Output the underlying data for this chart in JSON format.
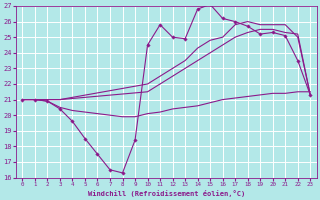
{
  "background_color": "#b3e8e8",
  "grid_color": "#ffffff",
  "line_color": "#8b1a8b",
  "xlabel": "Windchill (Refroidissement éolien,°C)",
  "xlim": [
    -0.5,
    23.5
  ],
  "ylim": [
    16,
    27
  ],
  "xticks": [
    0,
    1,
    2,
    3,
    4,
    5,
    6,
    7,
    8,
    9,
    10,
    11,
    12,
    13,
    14,
    15,
    16,
    17,
    18,
    19,
    20,
    21,
    22,
    23
  ],
  "yticks": [
    16,
    17,
    18,
    19,
    20,
    21,
    22,
    23,
    24,
    25,
    26,
    27
  ],
  "series_zigzag_x": [
    0,
    1,
    2,
    3,
    4,
    5,
    6,
    7,
    8,
    9,
    10,
    11,
    12,
    13,
    14,
    15,
    16,
    17,
    18,
    19,
    20,
    21,
    22,
    23
  ],
  "series_zigzag_y": [
    21,
    21,
    20.9,
    20.4,
    19.6,
    18.5,
    17.5,
    16.5,
    16.3,
    18.4,
    24.5,
    25.8,
    25.0,
    24.9,
    26.8,
    27.1,
    26.2,
    26.0,
    25.7,
    25.2,
    25.3,
    25.1,
    23.5,
    21.3
  ],
  "series_upper1_x": [
    0,
    1,
    2,
    3,
    10,
    11,
    12,
    13,
    14,
    15,
    16,
    17,
    18,
    19,
    20,
    21,
    22,
    23
  ],
  "series_upper1_y": [
    21,
    21,
    21,
    21,
    22.0,
    22.5,
    23.0,
    23.5,
    24.3,
    24.8,
    25.0,
    25.8,
    26.0,
    25.8,
    25.8,
    25.8,
    25.0,
    21.3
  ],
  "series_upper2_x": [
    0,
    1,
    2,
    3,
    10,
    11,
    12,
    13,
    14,
    15,
    16,
    17,
    18,
    19,
    20,
    21,
    22,
    23
  ],
  "series_upper2_y": [
    21,
    21,
    21,
    21,
    21.5,
    22.0,
    22.5,
    23.0,
    23.5,
    24.0,
    24.5,
    25.0,
    25.3,
    25.5,
    25.5,
    25.3,
    25.2,
    21.3
  ],
  "series_flat_x": [
    0,
    1,
    2,
    3,
    4,
    5,
    6,
    7,
    8,
    9,
    10,
    11,
    12,
    13,
    14,
    15,
    16,
    17,
    18,
    19,
    20,
    21,
    22,
    23
  ],
  "series_flat_y": [
    21,
    21,
    20.9,
    20.5,
    20.3,
    20.2,
    20.1,
    20.0,
    19.9,
    19.9,
    20.1,
    20.2,
    20.4,
    20.5,
    20.6,
    20.8,
    21.0,
    21.1,
    21.2,
    21.3,
    21.4,
    21.4,
    21.5,
    21.5
  ]
}
